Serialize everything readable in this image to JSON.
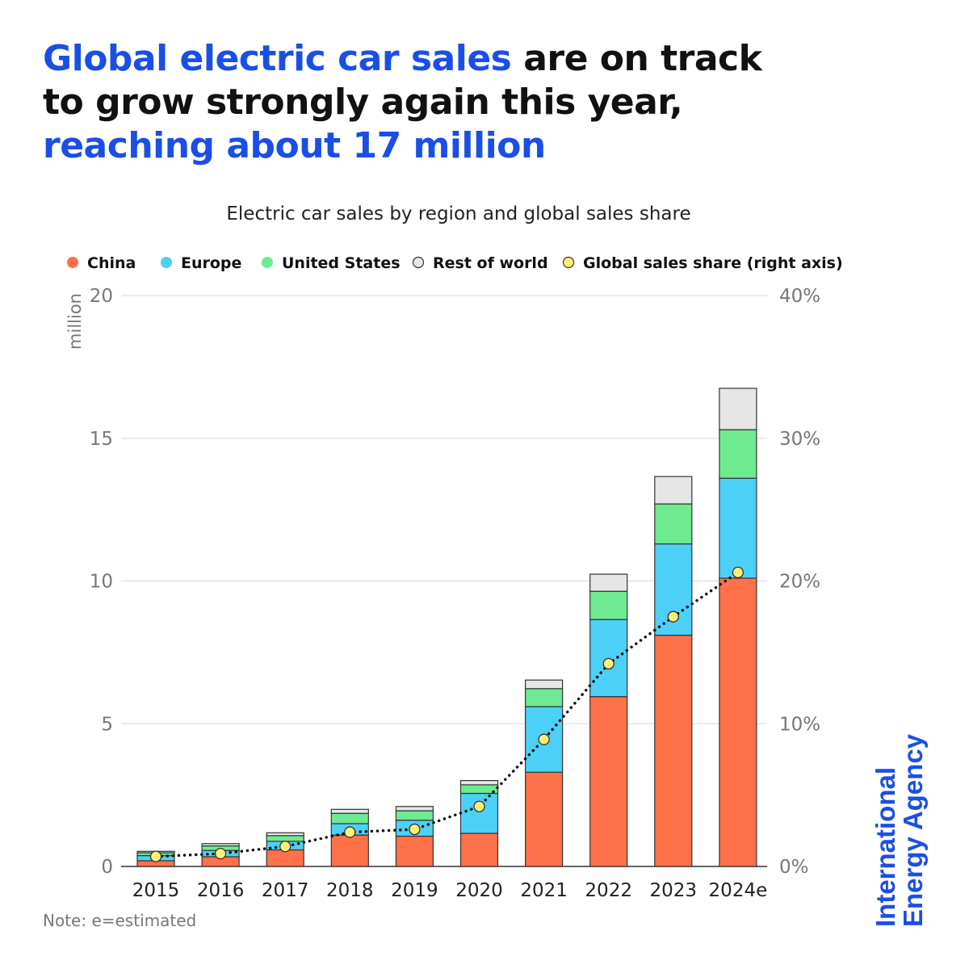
{
  "title": {
    "part1": "Global electric car sales",
    "part2": " are on track to grow strongly again this year, ",
    "part3": "reaching about 17 million"
  },
  "logo": {
    "line1": "International",
    "line2": "Energy Agency"
  },
  "note": "Note:  e=estimated",
  "chart_data": {
    "type": "bar",
    "stacked": true,
    "title": "Electric car sales by region and global sales share",
    "ylabel": "million",
    "ylim": [
      0,
      20
    ],
    "yticks": [
      "0",
      "5",
      "10",
      "15",
      "20"
    ],
    "y2lim": [
      0,
      40
    ],
    "y2ticks": [
      "0%",
      "10%",
      "20%",
      "30%",
      "40%"
    ],
    "grid": true,
    "legend_position": "top",
    "categories": [
      "2015",
      "2016",
      "2017",
      "2018",
      "2019",
      "2020",
      "2021",
      "2022",
      "2023",
      "2024e"
    ],
    "series": [
      {
        "name": "China",
        "color": "#ff7148",
        "values": [
          0.2,
          0.34,
          0.58,
          1.1,
          1.06,
          1.16,
          3.3,
          5.95,
          8.1,
          10.1
        ]
      },
      {
        "name": "Europe",
        "color": "#4dd0f8",
        "values": [
          0.18,
          0.22,
          0.3,
          0.4,
          0.56,
          1.4,
          2.3,
          2.7,
          3.2,
          3.5
        ]
      },
      {
        "name": "United States",
        "color": "#6eeb90",
        "values": [
          0.1,
          0.16,
          0.2,
          0.36,
          0.33,
          0.3,
          0.63,
          0.99,
          1.4,
          1.7
        ]
      },
      {
        "name": "Rest of world",
        "color": "#e6e6e6",
        "values": [
          0.05,
          0.08,
          0.1,
          0.14,
          0.15,
          0.15,
          0.3,
          0.6,
          0.96,
          1.45
        ]
      }
    ],
    "line_series": {
      "name": "Global sales share (right axis)",
      "color": "#fff176",
      "unit": "%",
      "values": [
        0.7,
        0.9,
        1.4,
        2.4,
        2.6,
        4.2,
        8.9,
        14.2,
        17.5,
        20.6
      ]
    }
  }
}
